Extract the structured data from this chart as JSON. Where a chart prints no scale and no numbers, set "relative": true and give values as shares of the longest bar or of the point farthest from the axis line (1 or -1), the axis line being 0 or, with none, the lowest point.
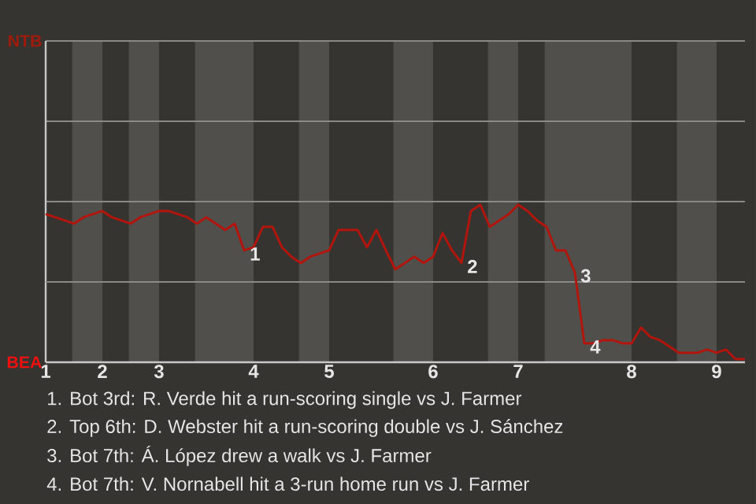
{
  "chart_data": {
    "type": "line",
    "relative": true,
    "categories": [
      "1",
      null,
      null,
      null,
      null,
      null,
      "2",
      null,
      null,
      null,
      null,
      null,
      "3",
      null,
      null,
      null,
      null,
      null,
      null,
      null,
      null,
      null,
      "4",
      null,
      null,
      null,
      null,
      null,
      null,
      null,
      "5",
      null,
      null,
      null,
      null,
      null,
      null,
      null,
      null,
      null,
      null,
      "6",
      null,
      null,
      null,
      null,
      null,
      null,
      null,
      null,
      "7",
      null,
      null,
      null,
      null,
      null,
      null,
      null,
      null,
      null,
      null,
      null,
      "8",
      null,
      null,
      null,
      null,
      null,
      null,
      null,
      null,
      "9",
      null,
      null,
      null
    ],
    "series": [
      {
        "color": "#b3150d",
        "values": [
          0.94,
          0.92,
          0.9,
          0.88,
          0.92,
          0.94,
          0.96,
          0.92,
          0.9,
          0.88,
          0.92,
          0.94,
          0.96,
          0.96,
          0.94,
          0.92,
          0.88,
          0.92,
          0.88,
          0.84,
          0.88,
          0.71,
          0.73,
          0.86,
          0.86,
          0.73,
          0.67,
          0.63,
          0.67,
          0.69,
          0.71,
          0.84,
          0.84,
          0.84,
          0.73,
          0.84,
          0.71,
          0.59,
          0.63,
          0.67,
          0.63,
          0.67,
          0.82,
          0.71,
          0.63,
          0.96,
          1,
          0.86,
          0.9,
          0.94,
          1,
          0.96,
          0.9,
          0.86,
          0.71,
          0.71,
          0.57,
          0.12,
          0.12,
          0.14,
          0.14,
          0.12,
          0.12,
          0.22,
          0.16,
          0.14,
          0.1,
          0.06,
          0.06,
          0.06,
          0.08,
          0.06,
          0.08,
          0.02,
          0.02
        ]
      }
    ],
    "ref_lines": [
      {
        "axis": "y",
        "value": 0.51,
        "color": "#8a8985"
      }
    ],
    "marker": "none",
    "line_style": "solid",
    "annotations": [
      "NTB",
      "BEA",
      "1",
      "2",
      "3",
      "4",
      "1. Bot 3rd: R. Verde hit a run-scoring single vs J. Farmer",
      "2. Top 6th: D. Webster hit a run-scoring double vs J. Sánchez",
      "3. Bot 7th: Á. López drew a walk vs J. Farmer",
      "4. Bot 7th: V. Nornabell hit a 3-run home run vs J. Farmer"
    ]
  }
}
